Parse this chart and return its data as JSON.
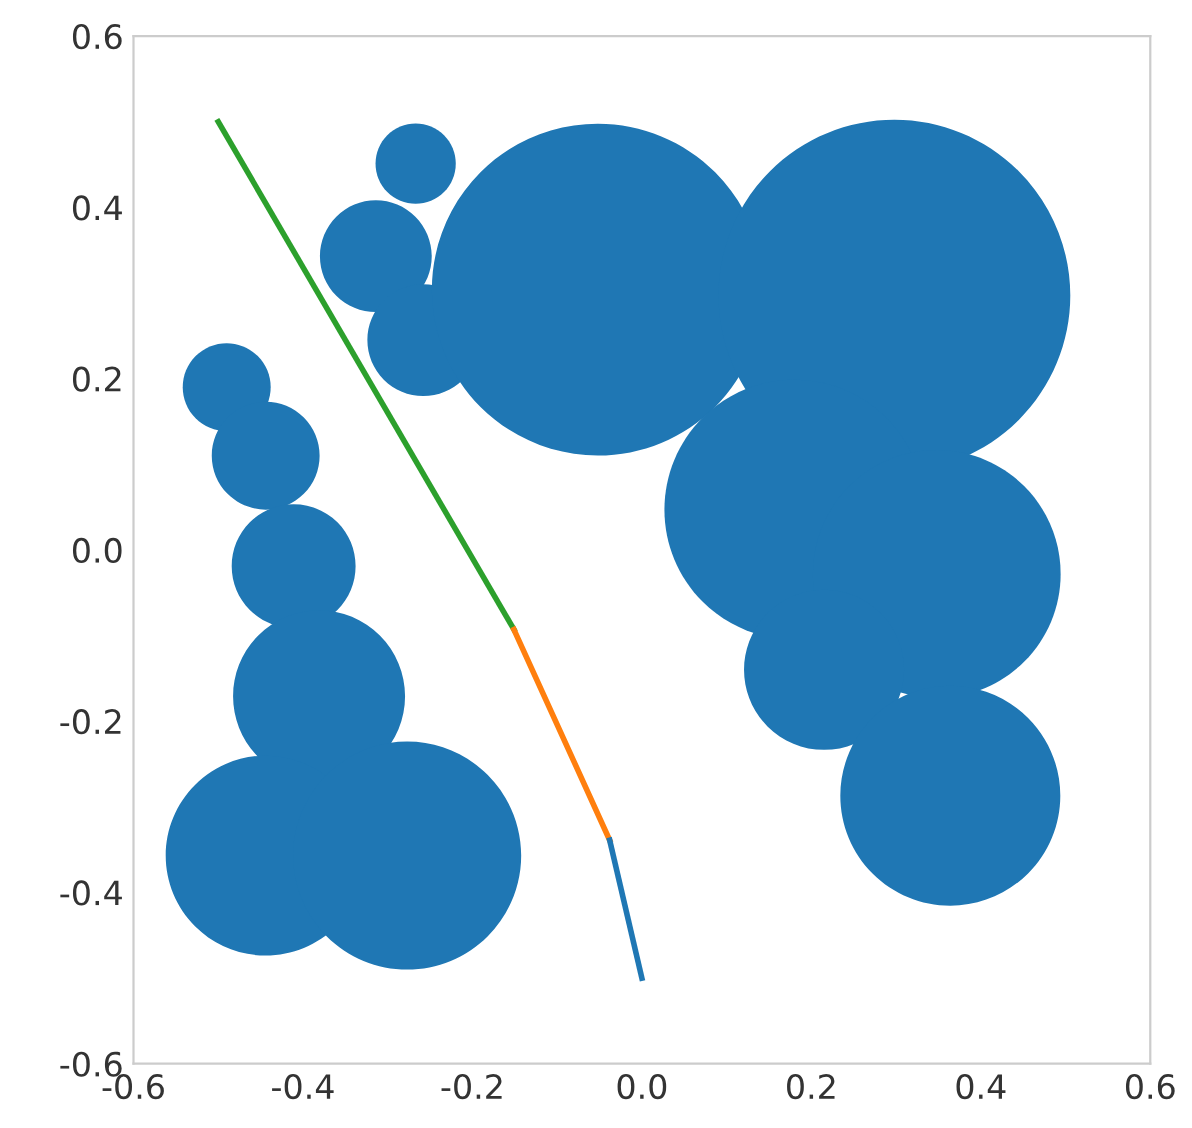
{
  "chart_data": {
    "type": "bubble",
    "xlim": [
      -0.6,
      0.6
    ],
    "ylim": [
      -0.6,
      0.6
    ],
    "xticks": [
      -0.6,
      -0.4,
      -0.2,
      {
        "value": 0,
        "label": "0.0"
      },
      0.2,
      0.4,
      0.6
    ],
    "yticks": [
      -0.6,
      -0.4,
      -0.2,
      {
        "value": 0,
        "label": "0.0"
      },
      0.2,
      0.4,
      0.6
    ],
    "grid": false,
    "legend": false,
    "series": [
      {
        "color": "#1f77b4",
        "x": [
          -0.49,
          -0.444,
          -0.411,
          -0.381,
          -0.444,
          -0.277,
          -0.267,
          -0.314,
          -0.258,
          -0.052,
          0.298,
          0.18,
          0.348,
          0.215,
          0.364
        ],
        "values": [
          0.19,
          0.11,
          -0.019,
          -0.171,
          -0.357,
          -0.357,
          0.451,
          0.343,
          0.245,
          0.304,
          0.297,
          0.047,
          -0.028,
          -0.14,
          -0.287
        ],
        "sizes": [
          0.0625,
          0.094,
          0.124,
          0.239,
          0.323,
          0.42,
          0.052,
          0.101,
          0.101,
          0.89,
          1,
          0.546,
          0.496,
          0.207,
          0.391
        ]
      },
      {
        "type": "line",
        "color": "#2ca02c",
        "x": [
          -0.5,
          -0.151
        ],
        "values": [
          0.5,
          -0.093
        ]
      },
      {
        "type": "line",
        "color": "#ff7f0e",
        "x": [
          -0.151,
          -0.038
        ],
        "values": [
          -0.093,
          -0.339
        ]
      },
      {
        "type": "line",
        "color": "#1f77b4",
        "x": [
          -0.038,
          0.0
        ],
        "values": [
          -0.339,
          -0.5
        ]
      }
    ]
  }
}
